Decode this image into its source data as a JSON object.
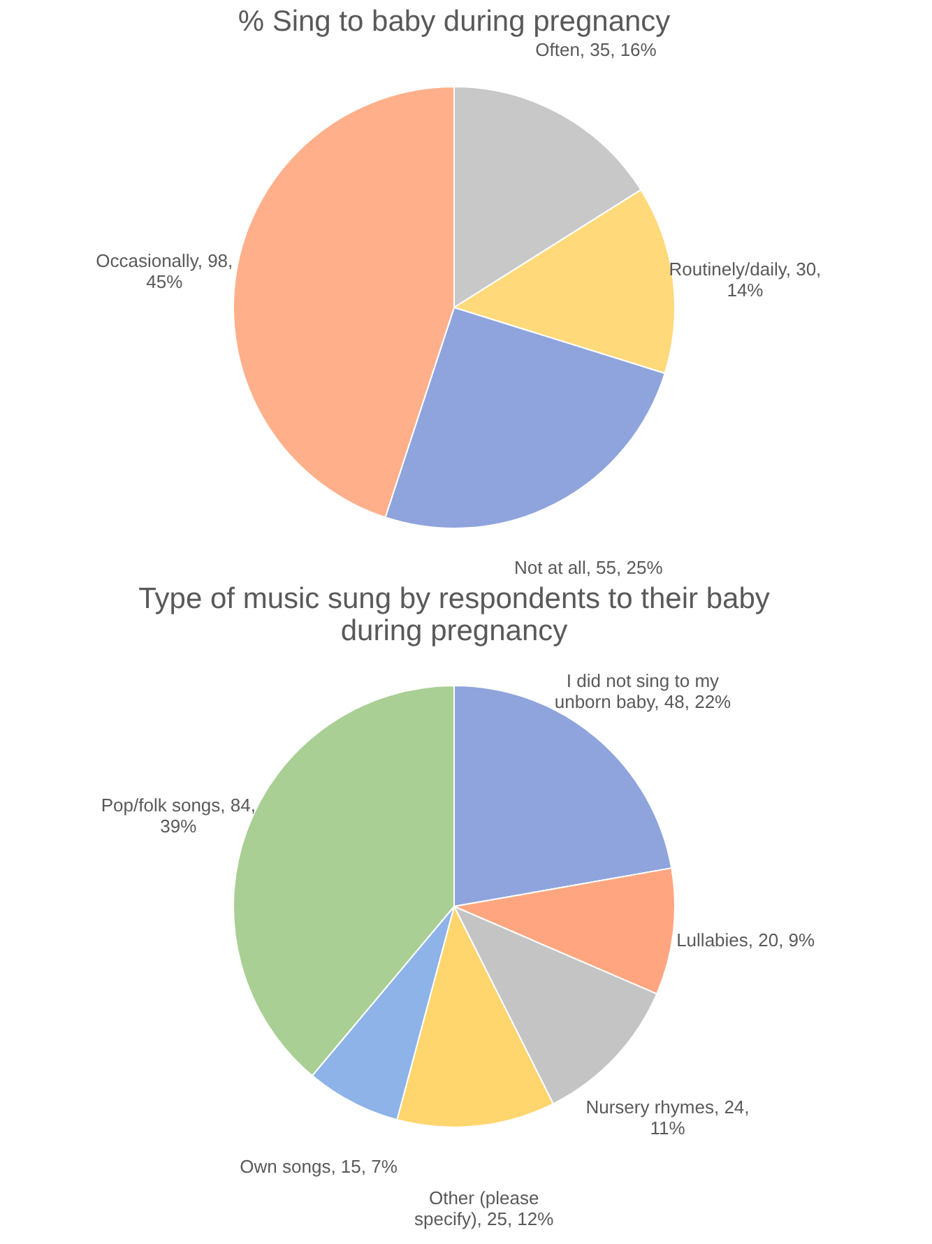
{
  "chart_data": [
    {
      "type": "pie",
      "title": "% Sing to baby during pregnancy",
      "categories": [
        "Often",
        "Routinely/daily",
        "Not at all",
        "Occasionally"
      ],
      "values": [
        35,
        30,
        55,
        98
      ],
      "colors": [
        "#c8c8c8",
        "#ffd97a",
        "#8fa4dc",
        "#ffb08a"
      ],
      "value_labels": [
        "35, 16%",
        "30, 14%",
        "55, 25%",
        "98, 45%"
      ]
    },
    {
      "type": "pie",
      "title": "Type of music sung by respondents to their baby during pregnancy",
      "categories": [
        "I did not sing to my unborn baby",
        "Lullabies",
        "Nursery rhymes",
        "Other (please specify)",
        "Own songs",
        "Pop/folk songs"
      ],
      "values": [
        48,
        20,
        24,
        25,
        15,
        84
      ],
      "colors": [
        "#8fa4dc",
        "#ffa680",
        "#c4c4c4",
        "#ffd56e",
        "#8db3e8",
        "#a9cf94"
      ],
      "value_labels": [
        "48, 22%",
        "20, 9%",
        "24, 11%",
        "25, 12%",
        "15, 7%",
        "84, 39%"
      ]
    }
  ]
}
